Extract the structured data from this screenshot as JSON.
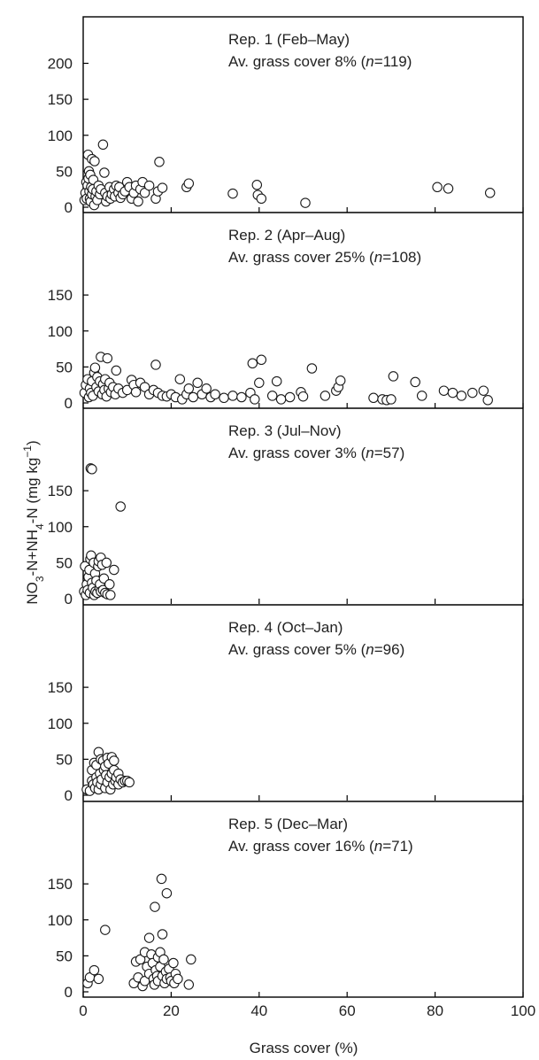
{
  "chart_data": {
    "type": "scatter",
    "xlabel": "Grass cover (%)",
    "ylabel": {
      "parts": [
        "NO",
        "3",
        "-N+NH",
        "4",
        "-N (mg kg",
        "−1",
        ")"
      ],
      "full": "NO3-N+NH4-N (mg kg−1)"
    },
    "xlim": [
      0,
      100
    ],
    "xticks": [
      0,
      20,
      40,
      60,
      80,
      100
    ],
    "ylim": [
      0,
      200
    ],
    "marker": "open-circle",
    "panels": [
      {
        "name": "Rep. 1 (Feb–May)",
        "annotation": [
          "Rep. 1 (Feb–May)",
          "Av. grass cover 8%",
          "119"
        ],
        "yticks": [
          0,
          50,
          100,
          150,
          200
        ],
        "points": [
          [
            0.3,
            10
          ],
          [
            0.5,
            20
          ],
          [
            0.7,
            35
          ],
          [
            0.8,
            12
          ],
          [
            1.0,
            30
          ],
          [
            1.1,
            73
          ],
          [
            1.2,
            40
          ],
          [
            1.3,
            50
          ],
          [
            1.4,
            22
          ],
          [
            1.5,
            12
          ],
          [
            1.6,
            45
          ],
          [
            1.7,
            8
          ],
          [
            1.8,
            28
          ],
          [
            2.0,
            18
          ],
          [
            2.0,
            67
          ],
          [
            2.2,
            25
          ],
          [
            2.3,
            38
          ],
          [
            2.5,
            3
          ],
          [
            2.6,
            64
          ],
          [
            2.8,
            15
          ],
          [
            3.0,
            22
          ],
          [
            3.2,
            10
          ],
          [
            3.5,
            30
          ],
          [
            3.8,
            18
          ],
          [
            4.0,
            25
          ],
          [
            4.5,
            87
          ],
          [
            4.8,
            48
          ],
          [
            5.0,
            20
          ],
          [
            5.2,
            8
          ],
          [
            5.5,
            15
          ],
          [
            6.0,
            28
          ],
          [
            6.2,
            12
          ],
          [
            6.5,
            18
          ],
          [
            7.0,
            25
          ],
          [
            7.2,
            15
          ],
          [
            7.5,
            30
          ],
          [
            8.0,
            20
          ],
          [
            8.2,
            28
          ],
          [
            8.5,
            13
          ],
          [
            9.0,
            18
          ],
          [
            9.5,
            22
          ],
          [
            10.0,
            35
          ],
          [
            10.5,
            28
          ],
          [
            11.0,
            12
          ],
          [
            11.5,
            20
          ],
          [
            12.0,
            30
          ],
          [
            12.5,
            8
          ],
          [
            13.0,
            25
          ],
          [
            13.5,
            35
          ],
          [
            14.0,
            20
          ],
          [
            15.0,
            30
          ],
          [
            16.5,
            12
          ],
          [
            17.0,
            22
          ],
          [
            17.3,
            63
          ],
          [
            18.0,
            27
          ],
          [
            23.5,
            28
          ],
          [
            24.0,
            33
          ],
          [
            34.0,
            19
          ],
          [
            39.5,
            31
          ],
          [
            39.7,
            17
          ],
          [
            40.5,
            12
          ],
          [
            50.5,
            6
          ],
          [
            80.5,
            28
          ],
          [
            83.0,
            26
          ],
          [
            92.5,
            20
          ]
        ]
      },
      {
        "name": "Rep. 2 (Apr–Aug)",
        "annotation": [
          "Rep. 2 (Apr–Aug)",
          "Av. grass cover 25%",
          "108"
        ],
        "yticks": [
          0,
          50,
          100,
          150
        ],
        "points": [
          [
            0.3,
            14
          ],
          [
            0.6,
            25
          ],
          [
            1.0,
            33
          ],
          [
            1.3,
            8
          ],
          [
            1.5,
            20
          ],
          [
            1.8,
            14
          ],
          [
            2.0,
            30
          ],
          [
            2.2,
            10
          ],
          [
            2.5,
            42
          ],
          [
            2.7,
            49
          ],
          [
            3.0,
            22
          ],
          [
            3.2,
            36
          ],
          [
            3.5,
            16
          ],
          [
            3.8,
            30
          ],
          [
            4.0,
            64
          ],
          [
            4.3,
            12
          ],
          [
            4.5,
            26
          ],
          [
            4.8,
            18
          ],
          [
            5.0,
            33
          ],
          [
            5.3,
            9
          ],
          [
            5.5,
            62
          ],
          [
            5.8,
            20
          ],
          [
            6.0,
            28
          ],
          [
            6.3,
            15
          ],
          [
            6.8,
            22
          ],
          [
            7.3,
            12
          ],
          [
            7.5,
            45
          ],
          [
            8.0,
            20
          ],
          [
            9.0,
            14
          ],
          [
            10.0,
            18
          ],
          [
            11.0,
            32
          ],
          [
            11.5,
            25
          ],
          [
            12.0,
            15
          ],
          [
            13.0,
            28
          ],
          [
            14.0,
            22
          ],
          [
            15.0,
            12
          ],
          [
            16.0,
            18
          ],
          [
            16.5,
            53
          ],
          [
            17.0,
            14
          ],
          [
            18.0,
            10
          ],
          [
            19.0,
            9
          ],
          [
            20.0,
            12
          ],
          [
            21.0,
            8
          ],
          [
            22.0,
            33
          ],
          [
            22.5,
            5
          ],
          [
            23.5,
            12
          ],
          [
            24.0,
            20
          ],
          [
            25.0,
            8
          ],
          [
            26.0,
            28
          ],
          [
            27.0,
            12
          ],
          [
            28.0,
            20
          ],
          [
            29.0,
            8
          ],
          [
            30.0,
            12
          ],
          [
            32.0,
            7
          ],
          [
            34.0,
            10
          ],
          [
            36.0,
            8
          ],
          [
            38.0,
            14
          ],
          [
            38.5,
            55
          ],
          [
            39.0,
            5
          ],
          [
            40.0,
            28
          ],
          [
            40.5,
            60
          ],
          [
            43.0,
            10
          ],
          [
            44.0,
            30
          ],
          [
            45.0,
            5
          ],
          [
            47.0,
            8
          ],
          [
            49.5,
            15
          ],
          [
            50.0,
            9
          ],
          [
            52.0,
            48
          ],
          [
            55.0,
            10
          ],
          [
            57.5,
            17
          ],
          [
            58.0,
            22
          ],
          [
            58.5,
            31
          ],
          [
            66.0,
            7
          ],
          [
            68.0,
            5
          ],
          [
            69.0,
            4
          ],
          [
            70.0,
            5
          ],
          [
            70.5,
            37
          ],
          [
            75.5,
            29
          ],
          [
            77.0,
            10
          ],
          [
            82.0,
            17
          ],
          [
            84.0,
            14
          ],
          [
            86.0,
            10
          ],
          [
            88.5,
            14
          ],
          [
            91.0,
            17
          ],
          [
            92.0,
            4
          ]
        ]
      },
      {
        "name": "Rep. 3 (Jul–Nov)",
        "annotation": [
          "Rep. 3 (Jul–Nov)",
          "Av. grass cover 3%",
          "57"
        ],
        "yticks": [
          0,
          50,
          100,
          150
        ],
        "points": [
          [
            0.2,
            10
          ],
          [
            0.4,
            45
          ],
          [
            0.6,
            5
          ],
          [
            0.8,
            20
          ],
          [
            1.0,
            12
          ],
          [
            1.2,
            30
          ],
          [
            1.4,
            40
          ],
          [
            1.5,
            8
          ],
          [
            1.6,
            55
          ],
          [
            1.7,
            181
          ],
          [
            1.8,
            60
          ],
          [
            2.0,
            22
          ],
          [
            2.0,
            180
          ],
          [
            2.2,
            15
          ],
          [
            2.4,
            50
          ],
          [
            2.5,
            5
          ],
          [
            2.7,
            35
          ],
          [
            2.8,
            10
          ],
          [
            3.0,
            25
          ],
          [
            3.2,
            8
          ],
          [
            3.4,
            45
          ],
          [
            3.5,
            52
          ],
          [
            3.7,
            15
          ],
          [
            3.8,
            20
          ],
          [
            4.0,
            10
          ],
          [
            4.0,
            57
          ],
          [
            4.3,
            47
          ],
          [
            4.5,
            12
          ],
          [
            4.7,
            28
          ],
          [
            5.0,
            8
          ],
          [
            5.3,
            50
          ],
          [
            5.5,
            6
          ],
          [
            6.0,
            20
          ],
          [
            6.2,
            5
          ],
          [
            7.0,
            40
          ],
          [
            8.5,
            128
          ]
        ]
      },
      {
        "name": "Rep. 4 (Oct–Jan)",
        "annotation": [
          "Rep. 4 (Oct–Jan)",
          "Av. grass cover 5%",
          "96"
        ],
        "yticks": [
          0,
          50,
          100,
          150
        ],
        "points": [
          [
            0.8,
            8
          ],
          [
            1.5,
            6
          ],
          [
            2.0,
            20
          ],
          [
            2.0,
            35
          ],
          [
            2.3,
            15
          ],
          [
            2.5,
            45
          ],
          [
            2.7,
            10
          ],
          [
            3.0,
            25
          ],
          [
            3.0,
            42
          ],
          [
            3.2,
            18
          ],
          [
            3.5,
            60
          ],
          [
            3.5,
            8
          ],
          [
            3.8,
            30
          ],
          [
            4.0,
            50
          ],
          [
            4.0,
            15
          ],
          [
            4.2,
            22
          ],
          [
            4.5,
            48
          ],
          [
            4.7,
            35
          ],
          [
            5.0,
            10
          ],
          [
            5.0,
            40
          ],
          [
            5.2,
            28
          ],
          [
            5.5,
            52
          ],
          [
            5.5,
            18
          ],
          [
            5.8,
            44
          ],
          [
            6.0,
            25
          ],
          [
            6.2,
            8
          ],
          [
            6.5,
            30
          ],
          [
            6.5,
            53
          ],
          [
            6.8,
            15
          ],
          [
            7.0,
            35
          ],
          [
            7.0,
            48
          ],
          [
            7.3,
            20
          ],
          [
            7.5,
            25
          ],
          [
            8.0,
            15
          ],
          [
            8.0,
            30
          ],
          [
            8.5,
            22
          ],
          [
            9.0,
            18
          ],
          [
            9.5,
            20
          ],
          [
            10.0,
            20
          ],
          [
            10.5,
            18
          ]
        ]
      },
      {
        "name": "Rep. 5 (Dec–Mar)",
        "annotation": [
          "Rep. 5 (Dec–Mar)",
          "Av. grass cover 16%",
          "71"
        ],
        "yticks": [
          0,
          50,
          100,
          150
        ],
        "points": [
          [
            1.0,
            12
          ],
          [
            1.5,
            20
          ],
          [
            2.5,
            30
          ],
          [
            3.5,
            18
          ],
          [
            5.0,
            86
          ],
          [
            11.5,
            12
          ],
          [
            12.0,
            42
          ],
          [
            12.5,
            20
          ],
          [
            13.0,
            45
          ],
          [
            13.5,
            8
          ],
          [
            14.0,
            55
          ],
          [
            14.0,
            15
          ],
          [
            14.5,
            35
          ],
          [
            15.0,
            75
          ],
          [
            15.0,
            25
          ],
          [
            15.5,
            52
          ],
          [
            15.8,
            40
          ],
          [
            16.0,
            18
          ],
          [
            16.2,
            10
          ],
          [
            16.3,
            118
          ],
          [
            16.5,
            30
          ],
          [
            16.8,
            22
          ],
          [
            17.0,
            48
          ],
          [
            17.0,
            15
          ],
          [
            17.5,
            35
          ],
          [
            17.5,
            55
          ],
          [
            17.8,
            157
          ],
          [
            18.0,
            22
          ],
          [
            18.0,
            80
          ],
          [
            18.3,
            45
          ],
          [
            18.5,
            12
          ],
          [
            18.8,
            28
          ],
          [
            19.0,
            137
          ],
          [
            19.0,
            18
          ],
          [
            19.5,
            32
          ],
          [
            19.8,
            20
          ],
          [
            20.0,
            15
          ],
          [
            20.5,
            40
          ],
          [
            20.7,
            12
          ],
          [
            21.0,
            25
          ],
          [
            21.5,
            18
          ],
          [
            24.0,
            10
          ],
          [
            24.5,
            45
          ]
        ]
      }
    ]
  }
}
